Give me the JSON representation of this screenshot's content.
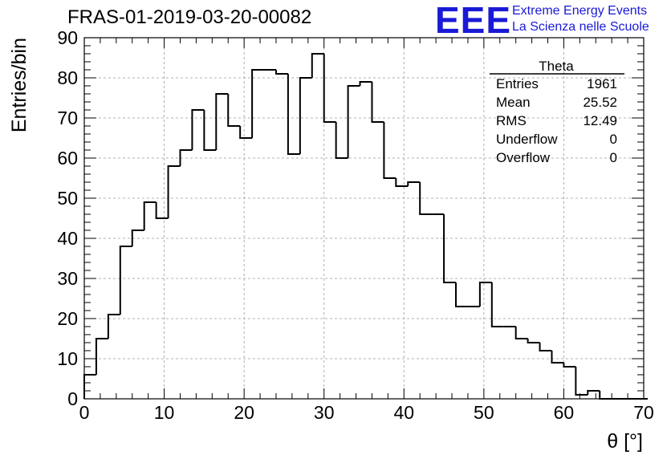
{
  "header": {
    "run_title": "FRAS-01-2019-03-20-00082",
    "logo_text": "EEE",
    "logo_line1": "Extreme Energy Events",
    "logo_line2": "La Scienza nelle Scuole",
    "logo_color": "#1a1ad6"
  },
  "stats_box": {
    "title": "Theta",
    "rows": [
      {
        "label": "Entries",
        "value": "1961"
      },
      {
        "label": "Mean",
        "value": "25.52"
      },
      {
        "label": "RMS",
        "value": "12.49"
      },
      {
        "label": "Underflow",
        "value": "0"
      },
      {
        "label": "Overflow",
        "value": "0"
      }
    ]
  },
  "chart_data": {
    "type": "bar",
    "style": "step histogram",
    "xlabel": "θ [°]",
    "ylabel": "Entries/bin",
    "xlim": [
      0,
      70
    ],
    "ylim": [
      0,
      90
    ],
    "bin_width": 1.5,
    "bin_edges_start": 0,
    "values": [
      6,
      15,
      21,
      38,
      42,
      49,
      45,
      58,
      62,
      72,
      62,
      76,
      68,
      65,
      82,
      82,
      81,
      61,
      80,
      86,
      69,
      60,
      78,
      79,
      69,
      55,
      53,
      54,
      46,
      46,
      29,
      23,
      23,
      29,
      18,
      18,
      15,
      14,
      12,
      9,
      8,
      1,
      2,
      0,
      0,
      0,
      0
    ],
    "x_ticks": [
      0,
      10,
      20,
      30,
      40,
      50,
      60,
      70
    ],
    "y_ticks": [
      0,
      10,
      20,
      30,
      40,
      50,
      60,
      70,
      80,
      90
    ],
    "grid": true,
    "line_color": "#000000"
  }
}
